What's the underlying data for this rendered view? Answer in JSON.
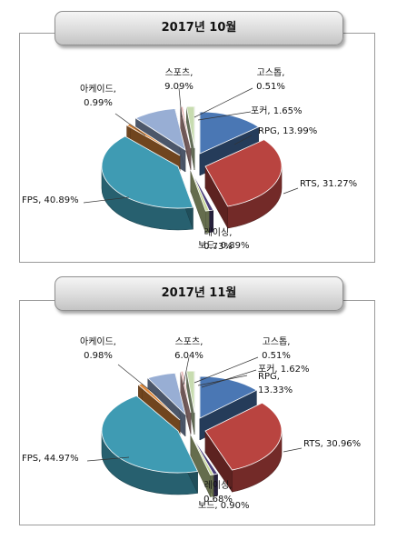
{
  "chart_data": [
    {
      "type": "pie",
      "title": "2017년 10월",
      "slices": [
        {
          "label": "RPG",
          "value": 13.99,
          "text": "RPG, 13.99%",
          "color": "#4a77b4"
        },
        {
          "label": "RTS",
          "value": 31.27,
          "text": "RTS, 31.27%",
          "color": "#b94440"
        },
        {
          "label": "보드",
          "value": 0.89,
          "text": "보드, 0.89%",
          "color": "#4b3f78"
        },
        {
          "label": "레이싱",
          "value": 0.73,
          "text_line1": "레이싱,",
          "text_line2": "0.73%",
          "color": "#c9d99a"
        },
        {
          "label": "FPS",
          "value": 40.89,
          "text": "FPS, 40.89%",
          "color": "#3f9bb3"
        },
        {
          "label": "아케이드",
          "value": 0.99,
          "text_line1": "아케이드,",
          "text_line2": "0.99%",
          "color": "#e08a3c"
        },
        {
          "label": "스포츠",
          "value": 9.09,
          "text_line1": "스포츠,",
          "text_line2": "9.09%",
          "color": "#98aed4"
        },
        {
          "label": "고스톱",
          "value": 0.51,
          "text_line1": "고스톱,",
          "text_line2": "0.51%",
          "color": "#e6b5b4"
        },
        {
          "label": "포커",
          "value": 1.65,
          "text": "포커, 1.65%",
          "color": "#c8dcb0"
        }
      ]
    },
    {
      "type": "pie",
      "title": "2017년 11월",
      "slices": [
        {
          "label": "RPG",
          "value": 13.33,
          "text_line1": "RPG,",
          "text_line2": "13.33%",
          "color": "#4a77b4"
        },
        {
          "label": "RTS",
          "value": 30.96,
          "text": "RTS, 30.96%",
          "color": "#b94440"
        },
        {
          "label": "보드",
          "value": 0.9,
          "text": "보드, 0.90%",
          "color": "#4b3f78"
        },
        {
          "label": "레이싱",
          "value": 0.68,
          "text_line1": "레이싱,",
          "text_line2": "0.68%",
          "color": "#c9d99a"
        },
        {
          "label": "FPS",
          "value": 44.97,
          "text": "FPS, 44.97%",
          "color": "#3f9bb3"
        },
        {
          "label": "아케이드",
          "value": 0.98,
          "text_line1": "아케이드,",
          "text_line2": "0.98%",
          "color": "#e08a3c"
        },
        {
          "label": "스포츠",
          "value": 6.04,
          "text_line1": "스포츠,",
          "text_line2": "6.04%",
          "color": "#98aed4"
        },
        {
          "label": "고스톱",
          "value": 0.51,
          "text_line1": "고스톱,",
          "text_line2": "0.51%",
          "color": "#e6b5b4"
        },
        {
          "label": "포커",
          "value": 1.62,
          "text": "포커, 1.62%",
          "color": "#c8dcb0"
        }
      ]
    }
  ]
}
